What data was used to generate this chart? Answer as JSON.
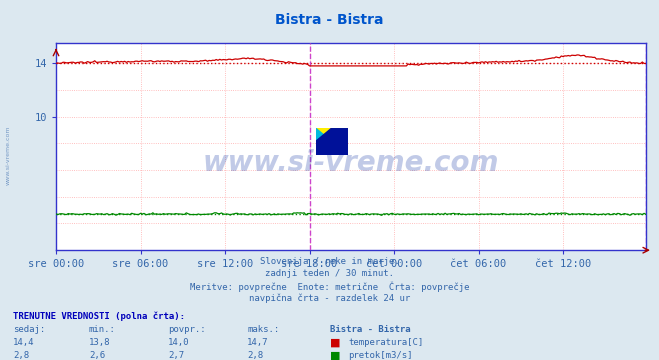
{
  "title": "Bistra - Bistra",
  "title_color": "#0055cc",
  "bg_color": "#dce8f0",
  "plot_bg_color": "#ffffff",
  "grid_color": "#ffaaaa",
  "grid_style": "dotted",
  "frame_color": "#3333cc",
  "xlabel_ticks": [
    "sre 00:00",
    "sre 06:00",
    "sre 12:00",
    "sre 18:00",
    "čet 00:00",
    "čet 06:00",
    "čet 12:00"
  ],
  "tick_color": "#3366aa",
  "ylabel_ticks": [
    14,
    10
  ],
  "ylim": [
    0,
    15.5
  ],
  "temp_color": "#cc0000",
  "temp_avg_color": "#cc0000",
  "flow_color": "#008800",
  "flow_avg_color": "#008800",
  "temp_min": 13.8,
  "temp_max": 14.7,
  "temp_avg": 14.0,
  "temp_current": 14.4,
  "flow_min": 2.6,
  "flow_max": 2.8,
  "flow_avg": 2.7,
  "flow_current": 2.8,
  "n_points": 336,
  "subtitle_lines": [
    "Slovenija / reke in morje.",
    "zadnji teden / 30 minut.",
    "Meritve: povprečne  Enote: metrične  Črta: povprečje",
    "navpična črta - razdelek 24 ur"
  ],
  "table_header_bold": "TRENUTNE VREDNOSTI (polna črta):",
  "table_cols": [
    "sedaj:",
    "min.:",
    "povpr.:",
    "maks.:",
    "Bistra - Bistra"
  ],
  "row1_label": "temperatura[C]",
  "row2_label": "pretok[m3/s]",
  "watermark": "www.si-vreme.com",
  "watermark_color": "#2244aa",
  "vline_color": "#cc44cc",
  "arrow_color": "#aa0000"
}
